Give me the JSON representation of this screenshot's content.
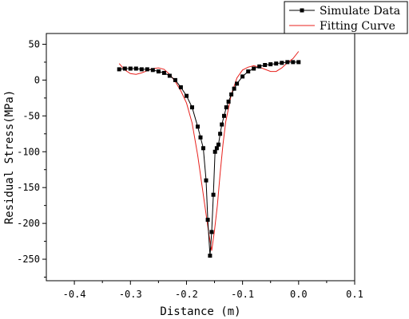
{
  "chart_data": {
    "type": "line",
    "title": "",
    "xlabel": "Distance (m)",
    "ylabel": "Residual Stress(MPa)",
    "xlim": [
      -0.45,
      0.1
    ],
    "ylim": [
      -280,
      65
    ],
    "x_ticks": [
      -0.4,
      -0.3,
      -0.2,
      -0.1,
      0.0,
      0.1
    ],
    "x_tick_labels": [
      "-0.4",
      "-0.3",
      "-0.2",
      "-0.1",
      "0.0",
      "0.1"
    ],
    "y_ticks": [
      50,
      0,
      -50,
      -100,
      -150,
      -200,
      -250
    ],
    "y_tick_labels": [
      "50",
      "0",
      "-50",
      "-100",
      "-150",
      "-200",
      "-250"
    ],
    "grid": false,
    "legend_position": "top-right",
    "series": [
      {
        "name": "Simulate Data",
        "style": "line-with-square-markers",
        "color": "#000000",
        "x": [
          -0.32,
          -0.31,
          -0.3,
          -0.29,
          -0.28,
          -0.27,
          -0.26,
          -0.25,
          -0.24,
          -0.23,
          -0.22,
          -0.21,
          -0.2,
          -0.19,
          -0.18,
          -0.175,
          -0.17,
          -0.165,
          -0.162,
          -0.158,
          -0.155,
          -0.152,
          -0.149,
          -0.146,
          -0.143,
          -0.14,
          -0.137,
          -0.133,
          -0.129,
          -0.125,
          -0.12,
          -0.115,
          -0.11,
          -0.1,
          -0.09,
          -0.08,
          -0.07,
          -0.06,
          -0.05,
          -0.04,
          -0.03,
          -0.02,
          -0.01,
          0.0
        ],
        "y": [
          15,
          16,
          16,
          16,
          15,
          15,
          14,
          12,
          10,
          6,
          0,
          -10,
          -22,
          -38,
          -65,
          -80,
          -95,
          -140,
          -195,
          -245,
          -212,
          -160,
          -100,
          -95,
          -90,
          -75,
          -62,
          -50,
          -38,
          -30,
          -20,
          -12,
          -5,
          5,
          12,
          16,
          19,
          21,
          22,
          23,
          24,
          25,
          25,
          25
        ]
      },
      {
        "name": "Fitting Curve",
        "style": "line",
        "color": "#e8201c",
        "x": [
          -0.32,
          -0.31,
          -0.3,
          -0.29,
          -0.28,
          -0.27,
          -0.26,
          -0.25,
          -0.24,
          -0.23,
          -0.22,
          -0.21,
          -0.2,
          -0.19,
          -0.18,
          -0.17,
          -0.16,
          -0.155,
          -0.15,
          -0.145,
          -0.14,
          -0.135,
          -0.13,
          -0.12,
          -0.11,
          -0.1,
          -0.09,
          -0.08,
          -0.07,
          -0.06,
          -0.05,
          -0.04,
          -0.03,
          -0.02,
          -0.01,
          0.0
        ],
        "y": [
          23,
          14,
          9,
          8,
          10,
          13,
          16,
          17,
          15,
          8,
          -2,
          -15,
          -32,
          -60,
          -105,
          -160,
          -215,
          -238,
          -210,
          -175,
          -130,
          -90,
          -58,
          -20,
          3,
          14,
          18,
          20,
          18,
          15,
          12,
          12,
          17,
          24,
          30,
          40
        ]
      }
    ]
  }
}
